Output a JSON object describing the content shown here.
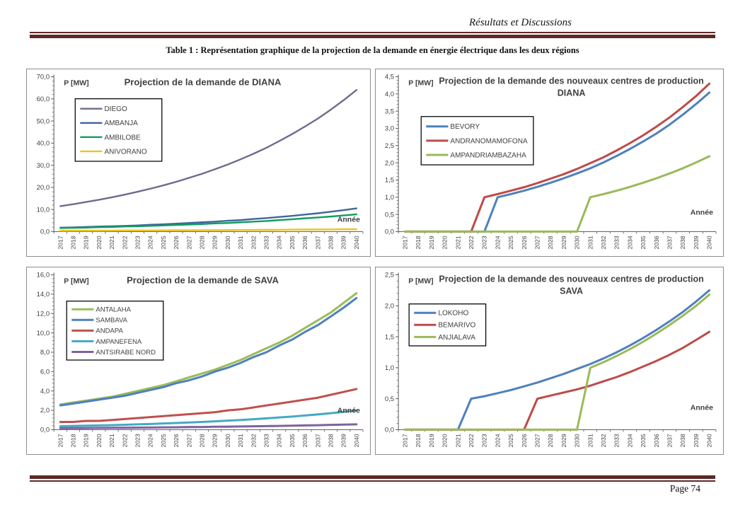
{
  "header": {
    "running_title": "Résultats et Discussions"
  },
  "caption": "Table 1 : Représentation graphique de la projection de la demande en énergie électrique dans les deux régions",
  "footer": {
    "page_label": "Page 74"
  },
  "colors": {
    "rule": "#5E2827",
    "axis": "#595959",
    "tick_text": "#3F3F3F",
    "title_text": "#404040"
  },
  "chart_data": [
    {
      "id": "projection-demande-diana",
      "type": "line",
      "title_lines": [
        "Projection de la demande de DIANA"
      ],
      "ylabel": "P [MW]",
      "xlabel": "Année",
      "x": [
        2017,
        2018,
        2019,
        2020,
        2021,
        2022,
        2023,
        2024,
        2025,
        2026,
        2027,
        2028,
        2029,
        2030,
        2031,
        2032,
        2033,
        2034,
        2035,
        2036,
        2037,
        2038,
        2039,
        2040
      ],
      "ylim": [
        0,
        70
      ],
      "ytick_step": 10,
      "grid": false,
      "legend_position": "upper-left",
      "series": [
        {
          "name": "DIEGO",
          "color": "#72688F",
          "values": [
            11.5,
            12.4,
            13.4,
            14.4,
            15.5,
            16.7,
            18.0,
            19.4,
            20.9,
            22.5,
            24.3,
            26.1,
            28.2,
            30.3,
            32.7,
            35.2,
            37.9,
            40.9,
            44.1,
            47.5,
            51.1,
            55.1,
            59.4,
            64.0
          ]
        },
        {
          "name": "AMBANJA",
          "color": "#41659A",
          "values": [
            1.8,
            1.9,
            2.1,
            2.3,
            2.4,
            2.6,
            2.8,
            3.1,
            3.3,
            3.6,
            3.9,
            4.2,
            4.5,
            4.9,
            5.2,
            5.7,
            6.1,
            6.6,
            7.1,
            7.7,
            8.3,
            9.0,
            9.7,
            10.5
          ]
        },
        {
          "name": "AMBILOBE",
          "color": "#129D63",
          "values": [
            1.6,
            1.7,
            1.8,
            2.0,
            2.1,
            2.3,
            2.4,
            2.6,
            2.8,
            3.0,
            3.2,
            3.4,
            3.7,
            3.9,
            4.2,
            4.5,
            4.8,
            5.2,
            5.6,
            6.0,
            6.4,
            6.8,
            7.3,
            7.8
          ]
        },
        {
          "name": "ANIVORANO",
          "color": "#EDC51C",
          "values": [
            0.4,
            0.42,
            0.44,
            0.46,
            0.48,
            0.5,
            0.52,
            0.55,
            0.57,
            0.6,
            0.62,
            0.65,
            0.68,
            0.71,
            0.74,
            0.78,
            0.81,
            0.85,
            0.89,
            0.93,
            0.97,
            1.01,
            1.06,
            1.1
          ]
        }
      ]
    },
    {
      "id": "projection-nouveaux-centres-diana",
      "type": "line",
      "title_lines": [
        "Projection de la demande des nouveaux centres de production",
        "DIANA"
      ],
      "ylabel": "P [MW]",
      "xlabel": "Année",
      "x": [
        2017,
        2018,
        2019,
        2020,
        2021,
        2022,
        2023,
        2024,
        2025,
        2026,
        2027,
        2028,
        2029,
        2030,
        2031,
        2032,
        2033,
        2034,
        2035,
        2036,
        2037,
        2038,
        2039,
        2040
      ],
      "ylim": [
        0,
        4.5
      ],
      "ytick_step": 0.5,
      "grid": false,
      "legend_position": "middle-left",
      "series": [
        {
          "name": "BEVORY",
          "color": "#4F81BD",
          "values": [
            0,
            0,
            0,
            0,
            0,
            0,
            0,
            1.0,
            1.09,
            1.19,
            1.3,
            1.42,
            1.55,
            1.69,
            1.84,
            2.01,
            2.2,
            2.4,
            2.62,
            2.85,
            3.11,
            3.4,
            3.71,
            4.04
          ]
        },
        {
          "name": "ANDRANOMAMOFONA",
          "color": "#BE4B48",
          "values": [
            0,
            0,
            0,
            0,
            0,
            0,
            1.0,
            1.09,
            1.19,
            1.29,
            1.41,
            1.54,
            1.67,
            1.82,
            1.99,
            2.16,
            2.36,
            2.57,
            2.8,
            3.05,
            3.32,
            3.62,
            3.94,
            4.3
          ]
        },
        {
          "name": "AMPANDRIAMBAZAHA",
          "color": "#9ABA58",
          "values": [
            0,
            0,
            0,
            0,
            0,
            0,
            0,
            0,
            0,
            0,
            0,
            0,
            0,
            0,
            1.0,
            1.09,
            1.19,
            1.3,
            1.42,
            1.55,
            1.69,
            1.84,
            2.01,
            2.19
          ]
        }
      ]
    },
    {
      "id": "projection-demande-sava",
      "type": "line",
      "title_lines": [
        "Projection de la demande de SAVA"
      ],
      "ylabel": "P [MW]",
      "xlabel": "Année",
      "x": [
        2017,
        2018,
        2019,
        2020,
        2021,
        2022,
        2023,
        2024,
        2025,
        2026,
        2027,
        2028,
        2029,
        2030,
        2031,
        2032,
        2033,
        2034,
        2035,
        2036,
        2037,
        2038,
        2039,
        2040
      ],
      "ylim": [
        0,
        16
      ],
      "ytick_step": 2,
      "grid": false,
      "legend_position": "upper-left",
      "series": [
        {
          "name": "ANTALAHA",
          "color": "#9BBB59",
          "values": [
            2.6,
            2.8,
            3.0,
            3.2,
            3.4,
            3.7,
            4.0,
            4.3,
            4.6,
            5.0,
            5.4,
            5.8,
            6.2,
            6.7,
            7.2,
            7.8,
            8.4,
            9.0,
            9.7,
            10.5,
            11.3,
            12.1,
            13.1,
            14.1
          ]
        },
        {
          "name": "SAMBAVA",
          "color": "#4F81BD",
          "values": [
            2.5,
            2.7,
            2.9,
            3.1,
            3.3,
            3.5,
            3.8,
            4.1,
            4.4,
            4.8,
            5.1,
            5.5,
            6.0,
            6.4,
            6.9,
            7.5,
            8.0,
            8.7,
            9.3,
            10.1,
            10.8,
            11.7,
            12.6,
            13.6
          ]
        },
        {
          "name": "ANDAPA",
          "color": "#C0504D",
          "values": [
            0.8,
            0.8,
            0.9,
            0.9,
            1.0,
            1.1,
            1.2,
            1.3,
            1.4,
            1.5,
            1.6,
            1.7,
            1.8,
            2.0,
            2.1,
            2.3,
            2.5,
            2.7,
            2.9,
            3.1,
            3.3,
            3.6,
            3.9,
            4.2
          ]
        },
        {
          "name": "AMPANEFENA",
          "color": "#45A9C4",
          "values": [
            0.35,
            0.38,
            0.41,
            0.44,
            0.47,
            0.51,
            0.55,
            0.59,
            0.64,
            0.69,
            0.74,
            0.8,
            0.86,
            0.93,
            1.0,
            1.08,
            1.17,
            1.26,
            1.36,
            1.46,
            1.58,
            1.7,
            1.84,
            1.98
          ]
        },
        {
          "name": "ANTSIRABE NORD",
          "color": "#7E62A1",
          "values": [
            0.15,
            0.16,
            0.17,
            0.18,
            0.19,
            0.2,
            0.21,
            0.22,
            0.24,
            0.25,
            0.27,
            0.28,
            0.3,
            0.31,
            0.33,
            0.35,
            0.37,
            0.39,
            0.41,
            0.44,
            0.46,
            0.49,
            0.52,
            0.55
          ]
        }
      ]
    },
    {
      "id": "projection-nouveaux-centres-sava",
      "type": "line",
      "title_lines": [
        "Projection de la demande des nouveaux centres de production",
        "SAVA"
      ],
      "ylabel": "P [MW]",
      "xlabel": "Année",
      "x": [
        2017,
        2018,
        2019,
        2020,
        2021,
        2022,
        2023,
        2024,
        2025,
        2026,
        2027,
        2028,
        2029,
        2030,
        2031,
        2032,
        2033,
        2034,
        2035,
        2036,
        2037,
        2038,
        2039,
        2040
      ],
      "ylim": [
        0,
        2.5
      ],
      "ytick_step": 0.5,
      "grid": false,
      "legend_position": "upper-left",
      "series": [
        {
          "name": "LOKOHO",
          "color": "#4F81BD",
          "values": [
            0,
            0,
            0,
            0,
            0,
            0.5,
            0.54,
            0.59,
            0.64,
            0.7,
            0.76,
            0.83,
            0.9,
            0.98,
            1.06,
            1.15,
            1.25,
            1.36,
            1.48,
            1.61,
            1.75,
            1.9,
            2.07,
            2.25
          ]
        },
        {
          "name": "BEMARIVO",
          "color": "#BE4B48",
          "values": [
            0,
            0,
            0,
            0,
            0,
            0,
            0,
            0,
            0,
            0,
            0.5,
            0.55,
            0.6,
            0.65,
            0.71,
            0.78,
            0.85,
            0.93,
            1.02,
            1.11,
            1.21,
            1.32,
            1.45,
            1.58
          ]
        },
        {
          "name": "ANJIALAVA",
          "color": "#9ABA58",
          "values": [
            0,
            0,
            0,
            0,
            0,
            0,
            0,
            0,
            0,
            0,
            0,
            0,
            0,
            0,
            1.0,
            1.09,
            1.19,
            1.3,
            1.42,
            1.55,
            1.69,
            1.84,
            2.0,
            2.18
          ]
        }
      ]
    }
  ]
}
